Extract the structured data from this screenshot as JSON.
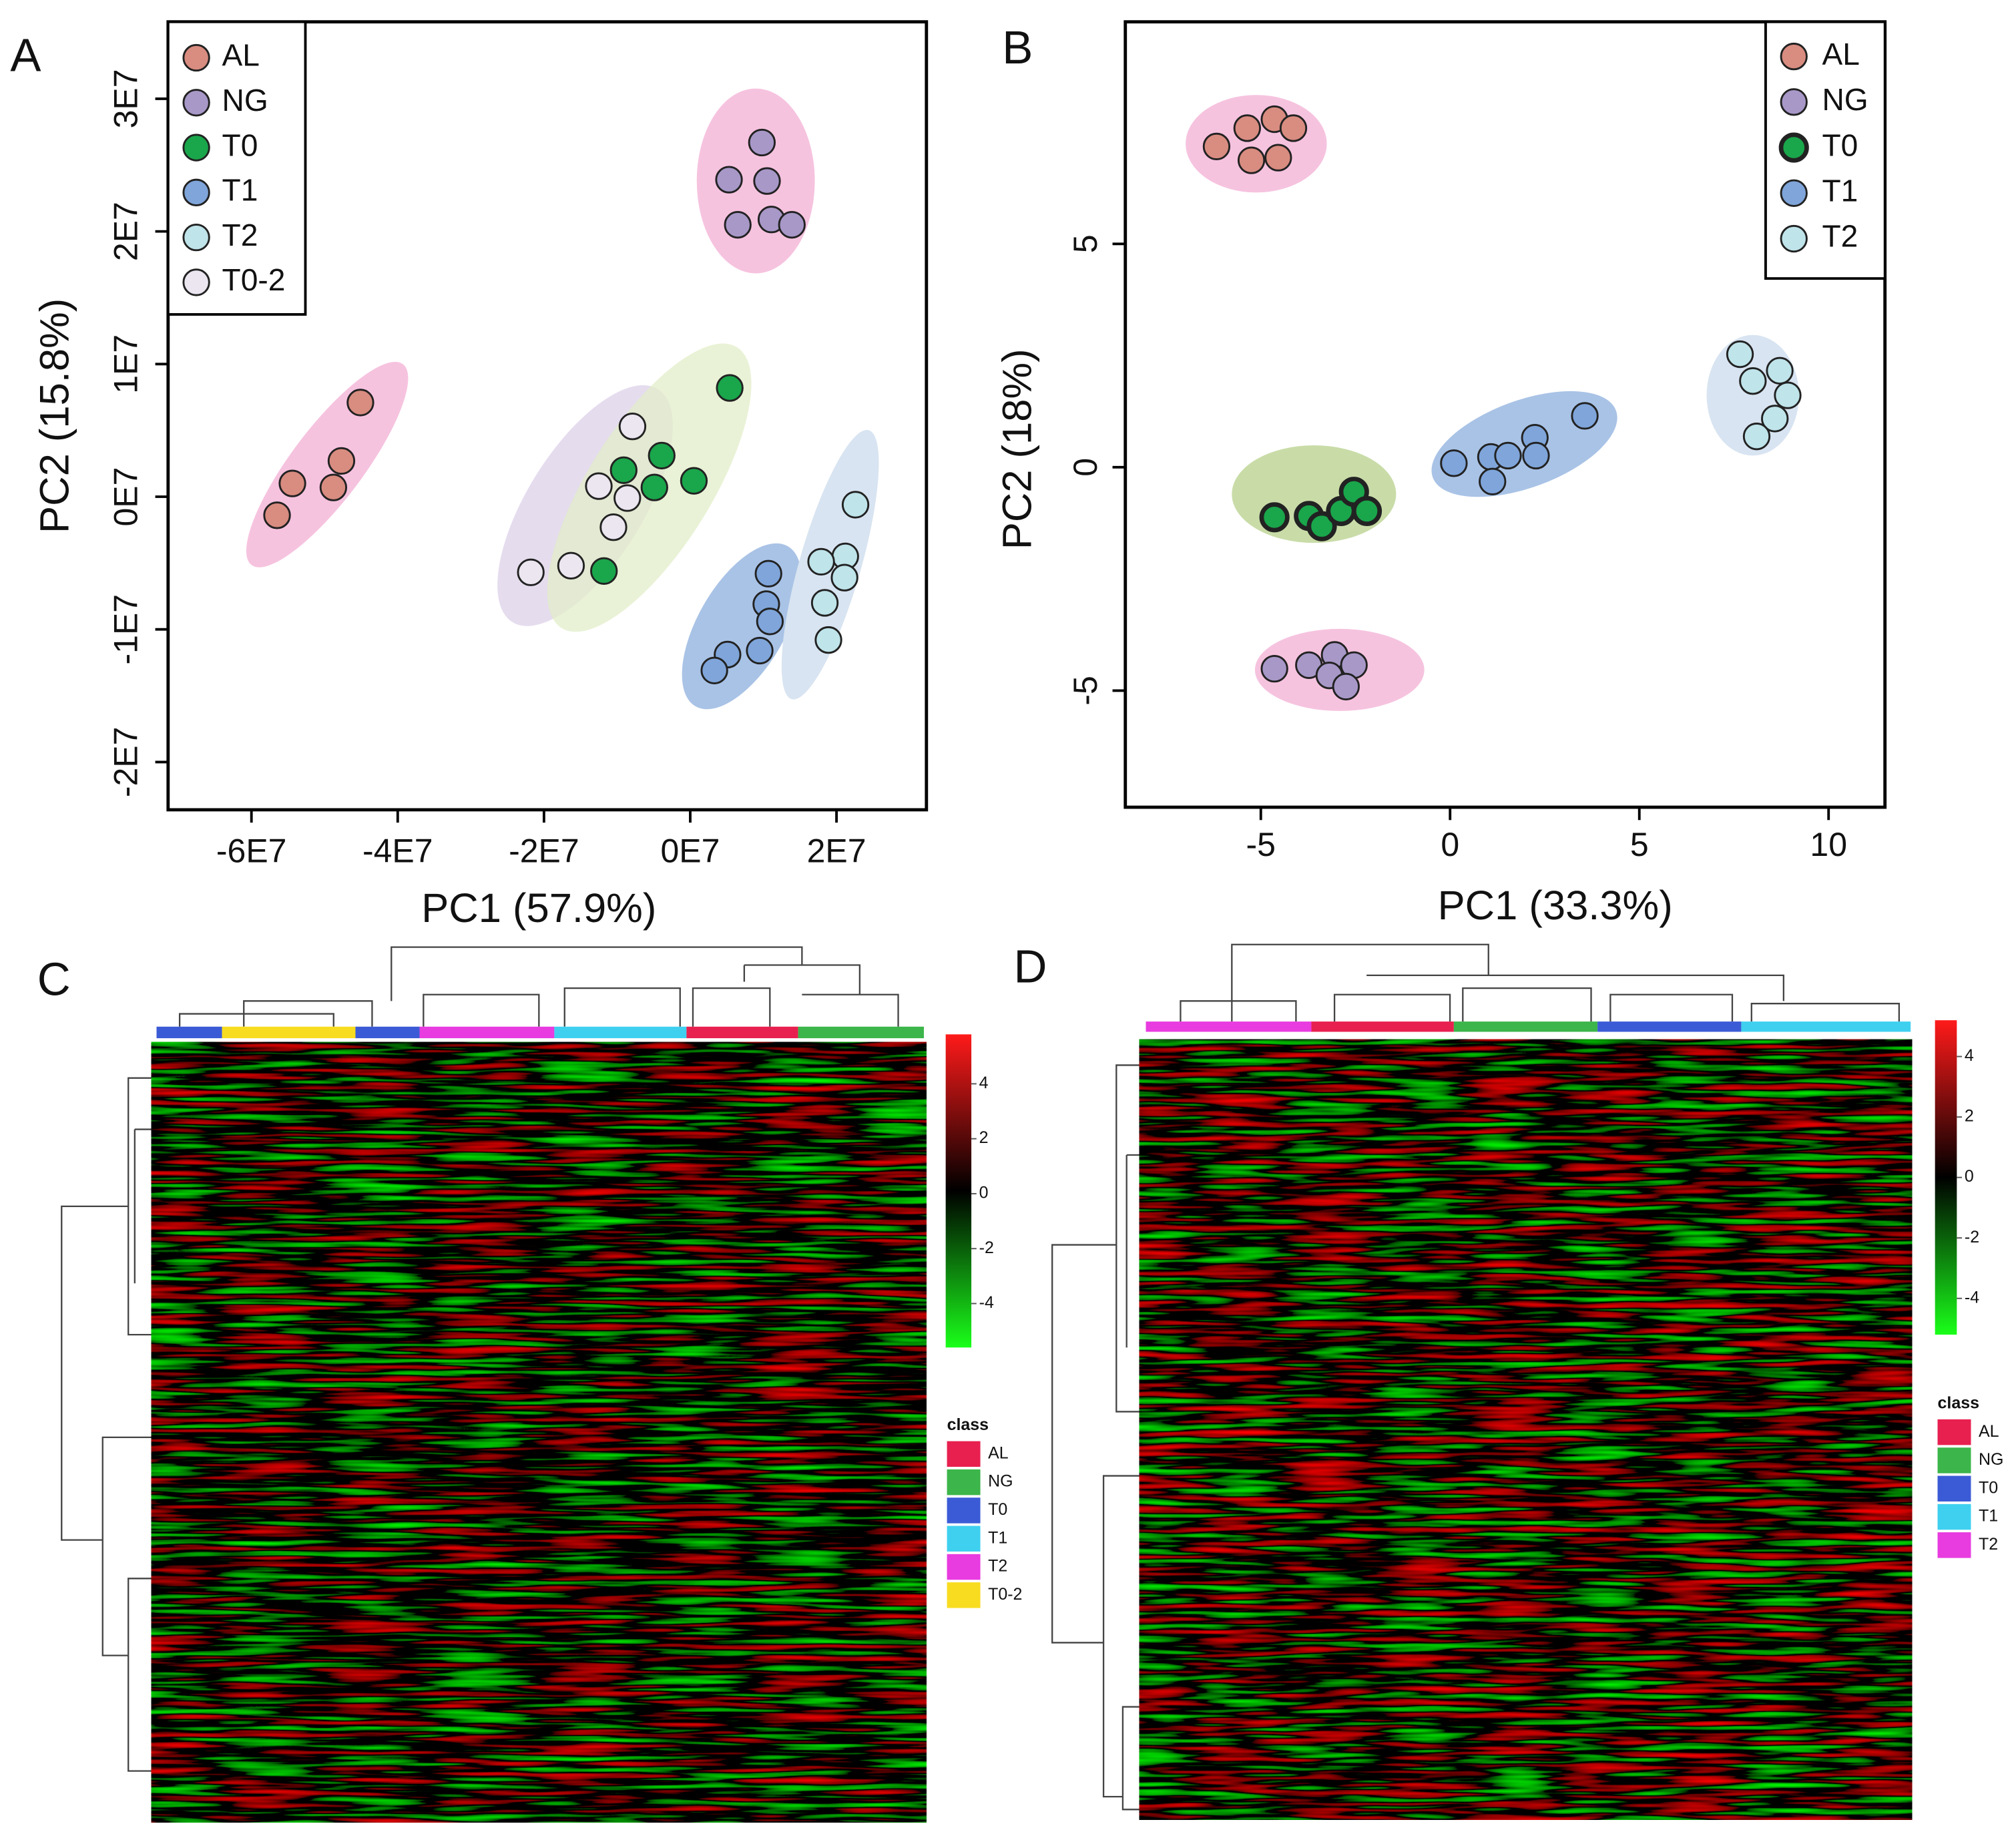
{
  "chart_data": [
    {
      "panel": "A",
      "type": "scatter",
      "xlabel": "PC1 (57.9%)",
      "ylabel": "PC2 (15.8%)",
      "xlim": [
        -71400000,
        32300000
      ],
      "ylim": [
        -23600000,
        35800000
      ],
      "xticks": [
        {
          "value": -60000000,
          "label": "-6E7"
        },
        {
          "value": -40000000,
          "label": "-4E7"
        },
        {
          "value": -20000000,
          "label": "-2E7"
        },
        {
          "value": 0,
          "label": "0E7"
        },
        {
          "value": 20000000,
          "label": "2E7"
        }
      ],
      "yticks": [
        {
          "value": -20000000,
          "label": "-2E7"
        },
        {
          "value": -10000000,
          "label": "-1E7"
        },
        {
          "value": 0,
          "label": "0E7"
        },
        {
          "value": 10000000,
          "label": "1E7"
        },
        {
          "value": 20000000,
          "label": "2E7"
        },
        {
          "value": 30000000,
          "label": "3E7"
        }
      ],
      "legend": "upper left",
      "series": [
        {
          "name": "AL",
          "color": "#d98c80",
          "x": [
            -45100000,
            -47700000,
            -54400000,
            -48800000,
            -56500000
          ],
          "y": [
            7100000,
            2700000,
            1000000,
            700000,
            -1400000
          ]
        },
        {
          "name": "NG",
          "color": "#a898c8",
          "x": [
            9800000,
            5300000,
            10500000,
            6500000,
            11100000,
            13900000
          ],
          "y": [
            26700000,
            23900000,
            23800000,
            20500000,
            20900000,
            20500000
          ]
        },
        {
          "name": "T0",
          "color": "#1aa64b",
          "x": [
            5400000,
            -3900000,
            -9100000,
            -4900000,
            500000,
            -11800000
          ],
          "y": [
            8200000,
            3100000,
            2000000,
            700000,
            1200000,
            -5600000
          ]
        },
        {
          "name": "T1",
          "color": "#7fa5da",
          "x": [
            10700000,
            10400000,
            10900000,
            9500000,
            5100000,
            3300000
          ],
          "y": [
            -5800000,
            -8100000,
            -9400000,
            -11600000,
            -11900000,
            -13100000
          ]
        },
        {
          "name": "T2",
          "color": "#bfe4ea",
          "x": [
            22600000,
            21200000,
            17900000,
            21100000,
            18400000,
            18900000
          ],
          "y": [
            -600000,
            -4500000,
            -4900000,
            -6100000,
            -8000000,
            -10800000
          ]
        },
        {
          "name": "T0-2",
          "color": "#ebe6f0",
          "x": [
            -7900000,
            -12500000,
            -8600000,
            -10500000,
            -16300000,
            -21800000
          ],
          "y": [
            5300000,
            800000,
            -100000,
            -2300000,
            -5200000,
            -5700000
          ]
        }
      ]
    },
    {
      "panel": "B",
      "type": "scatter",
      "xlabel": "PC1 (33.3%)",
      "ylabel": "PC2 (18%)",
      "xlim": [
        -8.58,
        11.49
      ],
      "ylim": [
        -7.61,
        9.97
      ],
      "xticks": [
        -5,
        0,
        5,
        10
      ],
      "yticks": [
        -5,
        0,
        5
      ],
      "legend": "upper right",
      "series": [
        {
          "name": "AL",
          "color": "#d98c80",
          "x": [
            -6.17,
            -5.36,
            -4.64,
            -4.14,
            -5.25,
            -4.54
          ],
          "y": [
            7.18,
            7.59,
            7.79,
            7.59,
            6.87,
            6.93
          ]
        },
        {
          "name": "NG",
          "color": "#a898c8",
          "x": [
            -4.64,
            -3.73,
            -3.05,
            -2.54,
            -3.19,
            -2.75
          ],
          "y": [
            -4.51,
            -4.43,
            -4.2,
            -4.43,
            -4.66,
            -4.91
          ]
        },
        {
          "name": "T0",
          "color": "#1aa64b",
          "edge_width": 3.5,
          "x": [
            -4.64,
            -3.73,
            -3.39,
            -2.88,
            -2.54,
            -2.2
          ],
          "y": [
            -1.12,
            -1.09,
            -1.32,
            -0.98,
            -0.55,
            -0.98
          ]
        },
        {
          "name": "T1",
          "color": "#7fa5da",
          "x": [
            0.1,
            1.08,
            1.53,
            2.24,
            2.27,
            1.12,
            3.56
          ],
          "y": [
            0.09,
            0.23,
            0.26,
            0.66,
            0.26,
            -0.32,
            1.15
          ]
        },
        {
          "name": "T2",
          "color": "#bfe4ea",
          "x": [
            7.66,
            8.0,
            8.71,
            8.92,
            8.58,
            8.1
          ],
          "y": [
            2.53,
            1.93,
            2.16,
            1.61,
            1.09,
            0.69
          ]
        }
      ]
    },
    {
      "panel": "C",
      "type": "heatmap",
      "clim": [
        -5.6,
        5.8
      ],
      "colorbar_ticks": [
        4,
        2,
        0,
        -2,
        -4
      ],
      "legend_title": "class",
      "classes": [
        {
          "name": "AL",
          "color": "#e8204f"
        },
        {
          "name": "NG",
          "color": "#3cb54a"
        },
        {
          "name": "T0",
          "color": "#3b5bd6"
        },
        {
          "name": "T1",
          "color": "#3fd0f0"
        },
        {
          "name": "T2",
          "color": "#e83be0"
        },
        {
          "name": "T0-2",
          "color": "#f8dc20"
        }
      ],
      "column_classes": [
        "T0",
        "T0-2",
        "T0",
        "T2",
        "T1",
        "AL",
        "NG"
      ]
    },
    {
      "panel": "D",
      "type": "heatmap",
      "clim": [
        -5.2,
        5.2
      ],
      "colorbar_ticks": [
        4,
        2,
        0,
        -2,
        -4
      ],
      "legend_title": "class",
      "classes": [
        {
          "name": "AL",
          "color": "#e8204f"
        },
        {
          "name": "NG",
          "color": "#3cb54a"
        },
        {
          "name": "T0",
          "color": "#3b5bd6"
        },
        {
          "name": "T1",
          "color": "#3fd0f0"
        },
        {
          "name": "T2",
          "color": "#e83be0"
        }
      ],
      "column_classes": [
        "T2",
        "AL",
        "NG",
        "T0",
        "T1"
      ]
    }
  ]
}
